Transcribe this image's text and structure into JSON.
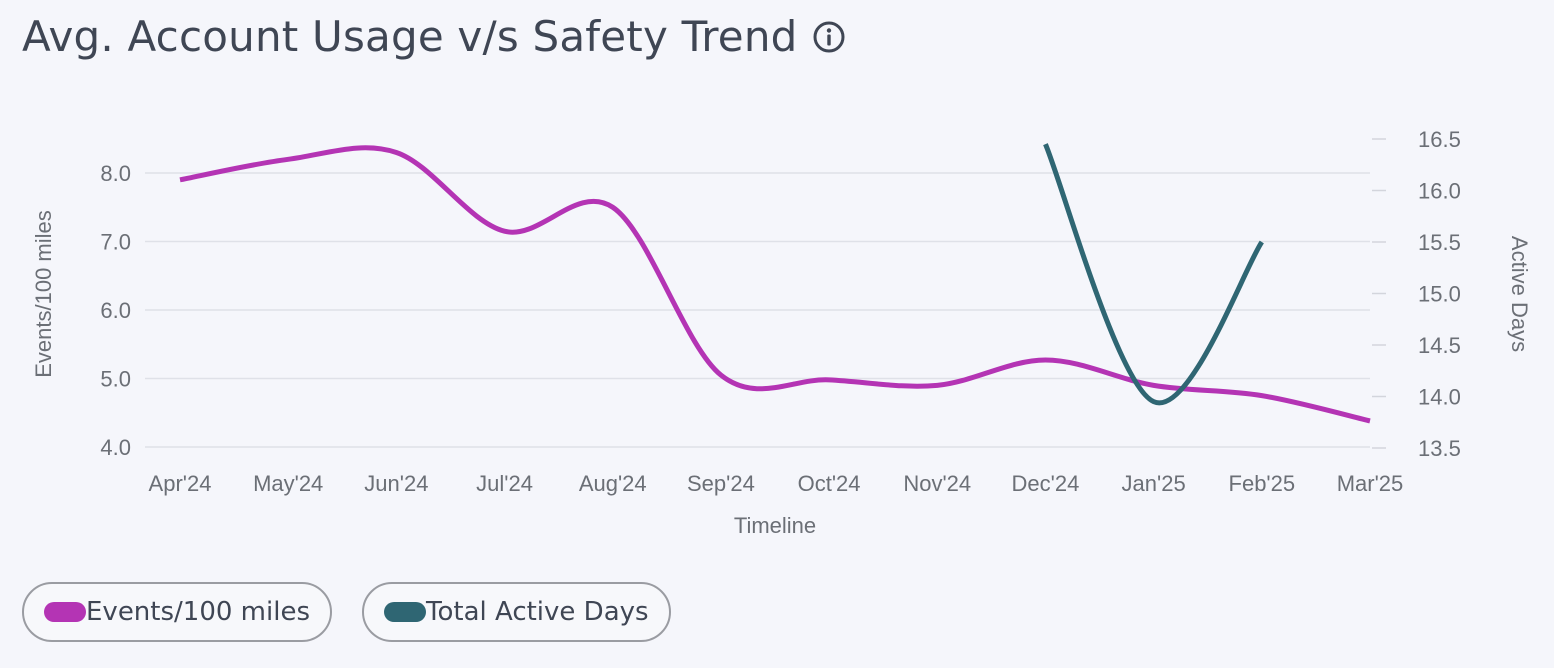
{
  "header": {
    "title": "Avg. Account Usage v/s Safety Trend",
    "info_icon": "info-icon"
  },
  "chart_data": {
    "type": "line",
    "title": "Avg. Account Usage v/s Safety Trend",
    "xlabel": "Timeline",
    "ylabel_left": "Events/100 miles",
    "ylabel_right": "Active Days",
    "categories": [
      "Apr'24",
      "May'24",
      "Jun'24",
      "Jul'24",
      "Aug'24",
      "Sep'24",
      "Oct'24",
      "Nov'24",
      "Dec'24",
      "Jan'25",
      "Feb'25",
      "Mar'25"
    ],
    "y_left": {
      "range": [
        4.0,
        8.0
      ],
      "ticks": [
        "4.0",
        "5.0",
        "6.0",
        "7.0",
        "8.0"
      ],
      "tick_values": [
        4,
        5,
        6,
        7,
        8
      ]
    },
    "y_right": {
      "range": [
        13.5,
        16.5
      ],
      "ticks": [
        "13.5",
        "14.0",
        "14.5",
        "15.0",
        "15.5",
        "16.0",
        "16.5"
      ],
      "tick_values": [
        13.5,
        14,
        14.5,
        15,
        15.5,
        16,
        16.5
      ]
    },
    "grid": true,
    "legend_position": "bottom-left",
    "series": [
      {
        "name": "Events/100 miles",
        "axis": "left",
        "color": "#b434b4",
        "values": [
          7.9,
          8.2,
          8.3,
          7.15,
          7.5,
          5.05,
          4.98,
          4.9,
          5.27,
          4.9,
          4.75,
          4.38
        ]
      },
      {
        "name": "Total Active Days",
        "axis": "right",
        "color": "#2f6673",
        "values": [
          null,
          null,
          null,
          null,
          null,
          null,
          null,
          null,
          16.45,
          13.95,
          15.5,
          null
        ]
      }
    ]
  }
}
